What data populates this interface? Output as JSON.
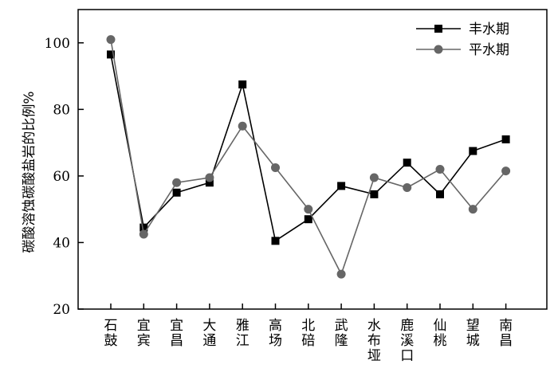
{
  "chart_data": {
    "type": "line",
    "categories": [
      "石鼓",
      "宜宾",
      "宜昌",
      "大通",
      "雅江",
      "高场",
      "北碚",
      "武隆",
      "水布垭",
      "鹿溪口",
      "仙桃",
      "望城",
      "南昌"
    ],
    "series": [
      {
        "name": "丰水期",
        "marker": "square",
        "color": "#000000",
        "values": [
          96.5,
          44.5,
          55.0,
          58.0,
          87.5,
          40.5,
          47.0,
          57.0,
          54.5,
          64.0,
          54.5,
          67.5,
          71.0
        ]
      },
      {
        "name": "平水期",
        "marker": "circle",
        "color": "#666666",
        "values": [
          101.0,
          42.5,
          58.0,
          59.5,
          75.0,
          62.5,
          50.0,
          30.5,
          59.5,
          56.5,
          62.0,
          50.0,
          61.5
        ]
      }
    ],
    "ylabel": "碳酸溶蚀碳酸盐岩的比例%",
    "xlabel": "",
    "ylim": [
      20,
      110
    ],
    "yticks": [
      20,
      40,
      60,
      80,
      100
    ],
    "legend": "top-right",
    "grid": false
  }
}
